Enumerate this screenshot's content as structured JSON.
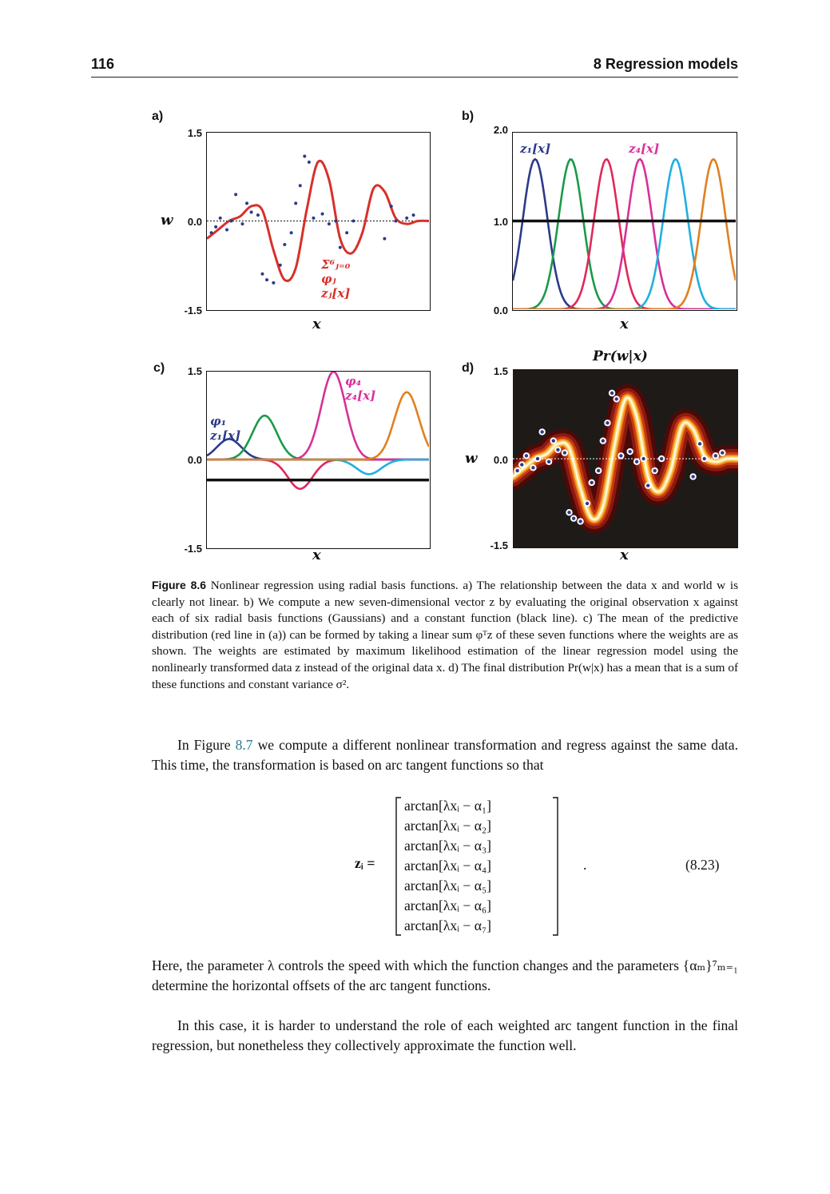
{
  "header": {
    "page_number": "116",
    "chapter_title": "8 Regression models"
  },
  "figure": {
    "panels": {
      "a": {
        "label": "a)",
        "yticks": [
          "1.5",
          "0.0",
          "-1.5"
        ],
        "ylabel": "w",
        "xlabel": "x",
        "annotation": "Σ⁶ⱼ₌₀ φⱼ zⱼ[x]"
      },
      "b": {
        "label": "b)",
        "yticks": [
          "2.0",
          "1.0",
          "0.0"
        ],
        "xlabel": "x",
        "legend_z1": "z₁[x]",
        "legend_z4": "z₄[x]"
      },
      "c": {
        "label": "c)",
        "yticks": [
          "1.5",
          "0.0",
          "-1.5"
        ],
        "xlabel": "x",
        "legend_phi1": "φ₁ z₁[x]",
        "legend_phi4": "φ₄ z₄[x]"
      },
      "d": {
        "label": "d)",
        "title": "Pr(w|x)",
        "yticks": [
          "1.5",
          "0.0",
          "-1.5"
        ],
        "ylabel": "w",
        "xlabel": "x"
      }
    }
  },
  "chart_data": [
    {
      "type": "scatter",
      "panel": "a",
      "xlim": [
        0,
        1
      ],
      "ylim": [
        -1.5,
        1.5
      ],
      "mean_curve": {
        "x": [
          0.0,
          0.05,
          0.1,
          0.15,
          0.2,
          0.25,
          0.3,
          0.35,
          0.4,
          0.45,
          0.5,
          0.55,
          0.6,
          0.65,
          0.7,
          0.75,
          0.8,
          0.85,
          0.9,
          0.95,
          1.0
        ],
        "y": [
          -0.3,
          -0.15,
          0.0,
          0.08,
          0.25,
          0.18,
          -0.5,
          -1.0,
          -0.8,
          0.2,
          1.0,
          0.7,
          -0.3,
          -0.55,
          -0.2,
          0.55,
          0.5,
          0.05,
          -0.05,
          0.0,
          0.0
        ]
      },
      "points": {
        "x": [
          0.02,
          0.04,
          0.06,
          0.09,
          0.11,
          0.13,
          0.16,
          0.18,
          0.2,
          0.23,
          0.25,
          0.27,
          0.3,
          0.33,
          0.35,
          0.38,
          0.4,
          0.42,
          0.44,
          0.46,
          0.48,
          0.52,
          0.55,
          0.58,
          0.6,
          0.63,
          0.66,
          0.8,
          0.83,
          0.85,
          0.9,
          0.93
        ],
        "y": [
          -0.2,
          -0.1,
          0.05,
          -0.15,
          0.0,
          0.45,
          -0.05,
          0.3,
          0.15,
          0.1,
          -0.9,
          -1.0,
          -1.05,
          -0.75,
          -0.4,
          -0.2,
          0.3,
          0.6,
          1.1,
          1.0,
          0.05,
          0.12,
          -0.05,
          0.0,
          -0.45,
          -0.2,
          0.0,
          -0.3,
          0.25,
          0.0,
          0.05,
          0.1
        ]
      }
    },
    {
      "type": "line",
      "panel": "b",
      "xlim": [
        0,
        1
      ],
      "ylim": [
        0,
        2
      ],
      "series": [
        {
          "name": "z1",
          "center": 0.1,
          "color": "#2b3a8a"
        },
        {
          "name": "z2",
          "center": 0.26,
          "color": "#1a9a4a"
        },
        {
          "name": "z3",
          "center": 0.42,
          "color": "#e0285a"
        },
        {
          "name": "z4",
          "center": 0.57,
          "color": "#d6309a"
        },
        {
          "name": "z5",
          "center": 0.73,
          "color": "#1fb0e0"
        },
        {
          "name": "z6",
          "center": 0.9,
          "color": "#e08020"
        },
        {
          "name": "z0",
          "constant": 1.0,
          "color": "#111111"
        }
      ]
    },
    {
      "type": "line",
      "panel": "c",
      "xlim": [
        0,
        1
      ],
      "ylim": [
        -1.5,
        1.5
      ],
      "series": [
        {
          "name": "phi1 z1",
          "center": 0.1,
          "weight": 0.35,
          "color": "#2b3a8a"
        },
        {
          "name": "phi2 z2",
          "center": 0.26,
          "weight": 0.75,
          "color": "#1a9a4a"
        },
        {
          "name": "phi3 z3",
          "center": 0.42,
          "weight": -0.5,
          "color": "#e0285a"
        },
        {
          "name": "phi4 z4",
          "center": 0.57,
          "weight": 1.5,
          "color": "#d6309a"
        },
        {
          "name": "phi5 z5",
          "center": 0.73,
          "weight": -0.25,
          "color": "#1fb0e0"
        },
        {
          "name": "phi6 z6",
          "center": 0.9,
          "weight": 1.15,
          "color": "#e08020"
        },
        {
          "name": "phi0 z0",
          "constant": -0.35,
          "color": "#111111"
        }
      ]
    },
    {
      "type": "heatmap",
      "panel": "d",
      "xlim": [
        0,
        1
      ],
      "ylim": [
        -1.5,
        1.5
      ]
    }
  ],
  "caption": {
    "label": "Figure 8.6",
    "text": " Nonlinear regression using radial basis functions.  a) The relationship between the data x and world w is clearly not linear.  b) We compute a new seven-dimensional vector z by evaluating the original observation x against each of six radial basis functions (Gaussians) and a constant function (black line).  c) The mean of the predictive distribution (red line in (a)) can be formed by taking a linear sum φᵀz of these seven functions where the weights are as shown. The weights are estimated by maximum likelihood estimation of the linear regression model using the nonlinearly transformed data z instead of the original data x.  d) The final distribution Pr(w|x) has a mean that is a sum of these functions and constant variance σ²."
  },
  "body": {
    "p1_before": "In Figure ",
    "p1_ref": "8.7",
    "p1_after": " we compute a different nonlinear transformation and regress against the same data. This time, the transformation is based on arc tangent functions so that",
    "eq_lhs": "zᵢ =",
    "eq_rows": [
      "arctan[λxᵢ − α₁]",
      "arctan[λxᵢ − α₂]",
      "arctan[λxᵢ − α₃]",
      "arctan[λxᵢ − α₄]",
      "arctan[λxᵢ − α₅]",
      "arctan[λxᵢ − α₆]",
      "arctan[λxᵢ − α₇]"
    ],
    "eq_tail": ".",
    "eq_number": "(8.23)",
    "p2": "Here, the parameter λ controls the speed with which the function changes and the parameters {αₘ}⁷ₘ₌₁ determine the horizontal offsets of the arc tangent functions.",
    "p3": "In this case, it is harder to understand the role of each weighted arc tangent function in the final regression, but nonetheless they collectively approximate the function well."
  }
}
